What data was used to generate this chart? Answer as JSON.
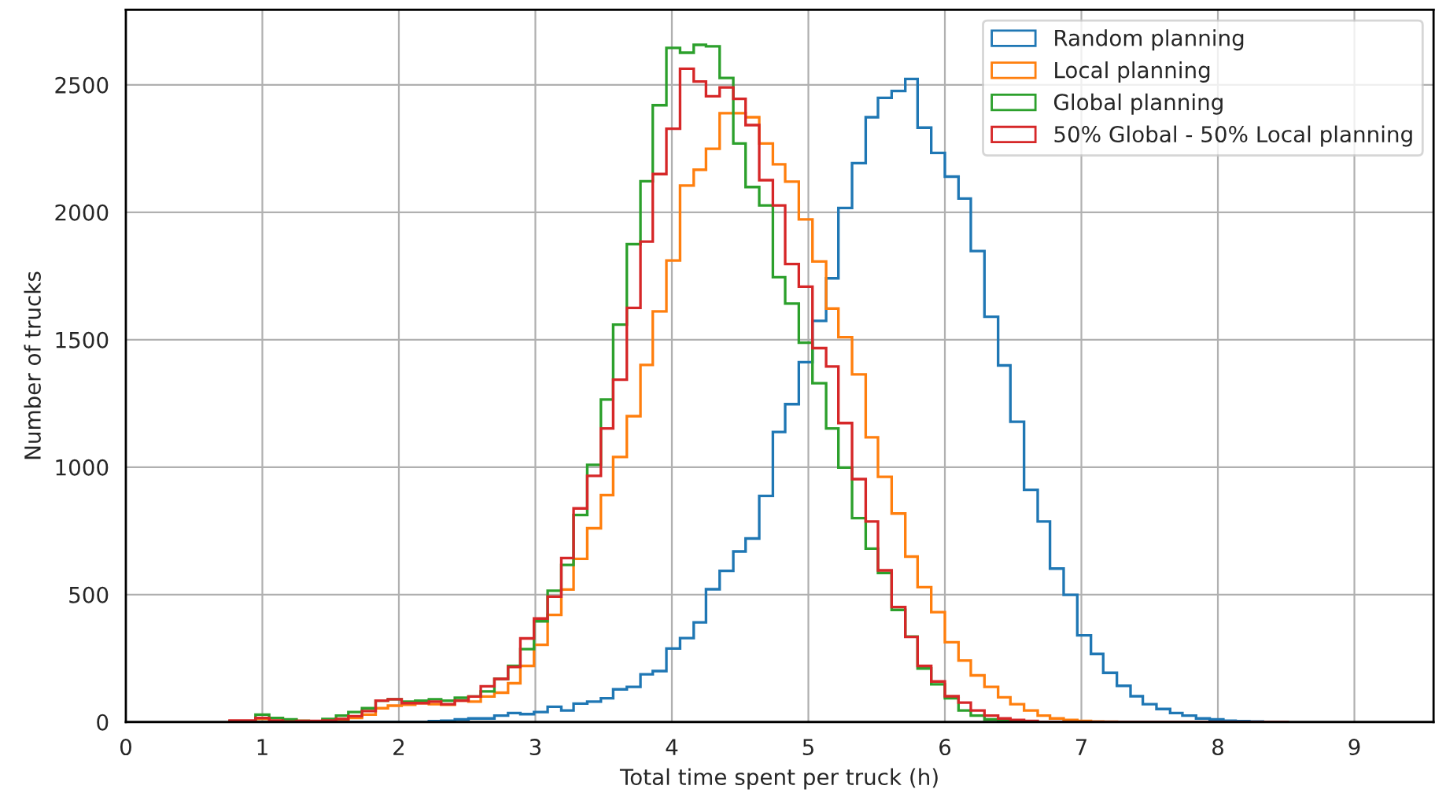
{
  "chart_data": {
    "type": "histogram",
    "xlabel": "Total time spent per truck (h)",
    "ylabel": "Number of trucks",
    "bins": [
      0.76,
      0.86,
      0.95,
      1.05,
      1.15,
      1.25,
      1.34,
      1.44,
      1.54,
      1.63,
      1.73,
      1.83,
      1.92,
      2.02,
      2.12,
      2.22,
      2.31,
      2.41,
      2.51,
      2.6,
      2.7,
      2.8,
      2.89,
      2.99,
      3.09,
      3.19,
      3.28,
      3.38,
      3.48,
      3.57,
      3.67,
      3.77,
      3.86,
      3.96,
      4.06,
      4.16,
      4.25,
      4.35,
      4.45,
      4.54,
      4.64,
      4.74,
      4.83,
      4.93,
      5.03,
      5.13,
      5.22,
      5.32,
      5.42,
      5.51,
      5.61,
      5.71,
      5.8,
      5.9,
      6.0,
      6.1,
      6.19,
      6.29,
      6.39,
      6.48,
      6.58,
      6.68,
      6.77,
      6.87,
      6.97,
      7.07,
      7.16,
      7.26,
      7.36,
      7.45,
      7.55,
      7.65,
      7.74,
      7.84,
      7.94,
      8.04,
      8.13,
      8.23,
      8.33,
      8.42,
      8.52
    ],
    "series": [
      {
        "name": "Random planning",
        "color": "#1f77b4",
        "values": [
          0,
          0,
          0,
          0,
          0,
          0,
          0,
          0,
          0,
          0,
          0,
          0,
          0,
          0,
          0,
          3,
          5,
          10,
          14,
          14,
          25,
          35,
          31,
          39,
          60,
          45,
          72,
          80,
          93,
          128,
          138,
          187,
          200,
          288,
          329,
          391,
          521,
          593,
          669,
          720,
          887,
          1138,
          1247,
          1412,
          1574,
          1741,
          2017,
          2193,
          2373,
          2449,
          2476,
          2523,
          2332,
          2233,
          2140,
          2054,
          1848,
          1590,
          1399,
          1178,
          911,
          787,
          602,
          499,
          340,
          267,
          193,
          142,
          101,
          70,
          51,
          35,
          25,
          14,
          10,
          5,
          3,
          2,
          0,
          0
        ]
      },
      {
        "name": "Local planning",
        "color": "#ff7f0e",
        "values": [
          2,
          2,
          12,
          16,
          8,
          4,
          2,
          6,
          10,
          16,
          29,
          54,
          64,
          68,
          74,
          70,
          68,
          84,
          80,
          100,
          115,
          152,
          220,
          303,
          420,
          520,
          640,
          760,
          890,
          1040,
          1200,
          1401,
          1611,
          1811,
          2105,
          2167,
          2249,
          2389,
          2389,
          2373,
          2270,
          2188,
          2120,
          1972,
          1807,
          1622,
          1510,
          1364,
          1117,
          962,
          818,
          649,
          529,
          431,
          313,
          241,
          183,
          138,
          97,
          70,
          45,
          25,
          14,
          8,
          4,
          2,
          1,
          0,
          0,
          0,
          0,
          0,
          0,
          0,
          0,
          0,
          0,
          0,
          0,
          0
        ]
      },
      {
        "name": "Global planning",
        "color": "#2ca02c",
        "values": [
          2,
          3,
          29,
          16,
          10,
          4,
          2,
          12,
          25,
          39,
          54,
          84,
          89,
          80,
          84,
          89,
          84,
          95,
          100,
          120,
          169,
          220,
          286,
          395,
          515,
          616,
          812,
          1009,
          1265,
          1559,
          1875,
          2122,
          2420,
          2645,
          2626,
          2657,
          2651,
          2527,
          2270,
          2099,
          2027,
          1745,
          1642,
          1488,
          1329,
          1152,
          998,
          800,
          680,
          585,
          440,
          335,
          210,
          148,
          93,
          45,
          25,
          10,
          4,
          0,
          0,
          0,
          0,
          0,
          0,
          0,
          0,
          0,
          0,
          0,
          0,
          0,
          0,
          0,
          0,
          0,
          0,
          0,
          0,
          0
        ]
      },
      {
        "name": "50% Global - 50% Local planning",
        "color": "#d62728",
        "values": [
          6,
          6,
          16,
          6,
          2,
          4,
          4,
          6,
          12,
          23,
          43,
          84,
          89,
          74,
          74,
          80,
          70,
          84,
          100,
          140,
          169,
          216,
          328,
          406,
          492,
          643,
          838,
          966,
          1152,
          1343,
          1625,
          1885,
          2150,
          2328,
          2563,
          2513,
          2455,
          2490,
          2445,
          2342,
          2126,
          2027,
          1797,
          1708,
          1467,
          1395,
          1173,
          953,
          787,
          595,
          451,
          334,
          220,
          159,
          101,
          76,
          45,
          25,
          14,
          8,
          4,
          0,
          0,
          0,
          0,
          0,
          0,
          0,
          0,
          0,
          0,
          0,
          0,
          0,
          0,
          0,
          0,
          0,
          0,
          0
        ]
      }
    ],
    "xlim": [
      0,
      9.58
    ],
    "ylim": [
      0,
      2795
    ],
    "xticks": [
      0,
      1,
      2,
      3,
      4,
      5,
      6,
      7,
      8,
      9
    ],
    "yticks": [
      0,
      500,
      1000,
      1500,
      2000,
      2500
    ],
    "grid": true,
    "legend": "top right"
  }
}
